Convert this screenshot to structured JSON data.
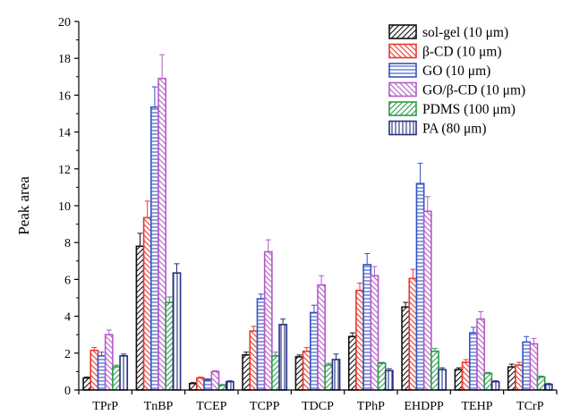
{
  "chart_data": {
    "type": "bar",
    "title": "",
    "xlabel": "",
    "ylabel": "Peak area",
    "ylim": [
      0,
      20
    ],
    "yticks": [
      0,
      2,
      4,
      6,
      8,
      10,
      12,
      14,
      16,
      18,
      20
    ],
    "grid": false,
    "legend_position": "top-right",
    "error_bars": true,
    "categories": [
      "TPrP",
      "TnBP",
      "TCEP",
      "TCPP",
      "TDCP",
      "TPhP",
      "EHDPP",
      "TEHP",
      "TCrP"
    ],
    "series": [
      {
        "name": "sol-gel (10 μm)",
        "color": "#111111",
        "pattern": "diag-right",
        "values": [
          0.65,
          7.8,
          0.35,
          1.9,
          1.8,
          2.9,
          4.5,
          1.1,
          1.25
        ],
        "errors": [
          0.05,
          0.7,
          0.05,
          0.15,
          0.1,
          0.2,
          0.25,
          0.1,
          0.15
        ]
      },
      {
        "name": "β-CD (10 μm)",
        "color": "#e8382d",
        "pattern": "diag-left",
        "values": [
          2.15,
          9.35,
          0.65,
          3.2,
          2.1,
          5.4,
          6.05,
          1.5,
          1.35
        ],
        "errors": [
          0.15,
          0.9,
          0.05,
          0.25,
          0.2,
          0.4,
          0.5,
          0.15,
          0.15
        ]
      },
      {
        "name": "GO (10 μm)",
        "color": "#3355c2",
        "pattern": "horizontal",
        "values": [
          1.85,
          15.35,
          0.55,
          4.95,
          4.2,
          6.8,
          11.2,
          3.1,
          2.6
        ],
        "errors": [
          0.2,
          1.1,
          0.05,
          0.25,
          0.4,
          0.6,
          1.1,
          0.3,
          0.3
        ]
      },
      {
        "name": "GO/β-CD (10 μm)",
        "color": "#b45bc8",
        "pattern": "diag-left",
        "values": [
          3.0,
          16.9,
          1.0,
          7.5,
          5.7,
          6.2,
          9.7,
          3.85,
          2.5
        ],
        "errors": [
          0.25,
          1.3,
          0.05,
          0.65,
          0.5,
          0.5,
          0.8,
          0.4,
          0.3
        ]
      },
      {
        "name": "PDMS (100 μm)",
        "color": "#2c9b48",
        "pattern": "diag-right",
        "values": [
          1.25,
          4.75,
          0.25,
          1.85,
          1.35,
          1.45,
          2.1,
          0.9,
          0.7
        ],
        "errors": [
          0.1,
          0.3,
          0.05,
          0.2,
          0.1,
          0.05,
          0.15,
          0.05,
          0.05
        ]
      },
      {
        "name": "PA (80 μm)",
        "color": "#27307e",
        "pattern": "vertical",
        "values": [
          1.85,
          6.35,
          0.45,
          3.55,
          1.65,
          1.05,
          1.1,
          0.45,
          0.3
        ],
        "errors": [
          0.1,
          0.5,
          0.05,
          0.3,
          0.3,
          0.1,
          0.1,
          0.05,
          0.05
        ]
      }
    ]
  }
}
